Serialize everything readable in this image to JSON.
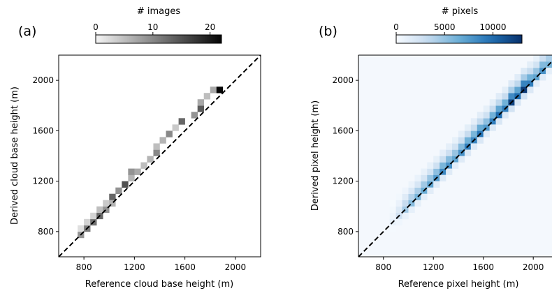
{
  "chart_data": [
    {
      "type": "heatmap",
      "panel_label": "(a)",
      "xlabel": "Reference cloud base height (m)",
      "ylabel": "Derived cloud base height (m)",
      "xlim": [
        600,
        2200
      ],
      "ylim": [
        600,
        2200
      ],
      "xticks": [
        800,
        1200,
        1600,
        2000
      ],
      "yticks": [
        800,
        1200,
        1600,
        2000
      ],
      "bin_size": 50,
      "reference_line": "y = x (dashed)",
      "colorbar": {
        "label": "# images",
        "range": [
          0,
          22
        ],
        "ticks": [
          0,
          10,
          20
        ],
        "colormap": "Greys"
      },
      "cells": [
        {
          "x": 775,
          "y": 775,
          "v": 9
        },
        {
          "x": 775,
          "y": 825,
          "v": 2
        },
        {
          "x": 825,
          "y": 825,
          "v": 11
        },
        {
          "x": 825,
          "y": 875,
          "v": 3
        },
        {
          "x": 875,
          "y": 875,
          "v": 12
        },
        {
          "x": 875,
          "y": 925,
          "v": 3
        },
        {
          "x": 925,
          "y": 925,
          "v": 13
        },
        {
          "x": 925,
          "y": 975,
          "v": 5
        },
        {
          "x": 975,
          "y": 975,
          "v": 9
        },
        {
          "x": 975,
          "y": 1025,
          "v": 4
        },
        {
          "x": 1025,
          "y": 1075,
          "v": 13
        },
        {
          "x": 1025,
          "y": 1025,
          "v": 6
        },
        {
          "x": 1075,
          "y": 1125,
          "v": 9
        },
        {
          "x": 1125,
          "y": 1175,
          "v": 15
        },
        {
          "x": 1175,
          "y": 1225,
          "v": 6
        },
        {
          "x": 1175,
          "y": 1275,
          "v": 9
        },
        {
          "x": 1225,
          "y": 1275,
          "v": 7
        },
        {
          "x": 1275,
          "y": 1325,
          "v": 5
        },
        {
          "x": 1325,
          "y": 1375,
          "v": 6
        },
        {
          "x": 1375,
          "y": 1425,
          "v": 10
        },
        {
          "x": 1375,
          "y": 1475,
          "v": 5
        },
        {
          "x": 1425,
          "y": 1525,
          "v": 6
        },
        {
          "x": 1475,
          "y": 1575,
          "v": 10
        },
        {
          "x": 1525,
          "y": 1625,
          "v": 4
        },
        {
          "x": 1575,
          "y": 1675,
          "v": 13
        },
        {
          "x": 1675,
          "y": 1725,
          "v": 9
        },
        {
          "x": 1725,
          "y": 1775,
          "v": 14
        },
        {
          "x": 1725,
          "y": 1825,
          "v": 7
        },
        {
          "x": 1775,
          "y": 1875,
          "v": 5
        },
        {
          "x": 1825,
          "y": 1925,
          "v": 7
        },
        {
          "x": 1875,
          "y": 1925,
          "v": 22
        }
      ]
    },
    {
      "type": "heatmap",
      "panel_label": "(b)",
      "xlabel": "Reference pixel height (m)",
      "ylabel": "Derived pixel height (m)",
      "xlim": [
        600,
        2150
      ],
      "ylim": [
        600,
        2200
      ],
      "xticks": [
        800,
        1200,
        1600,
        2000
      ],
      "yticks": [
        800,
        1200,
        1600,
        2000
      ],
      "bin_size": 50,
      "reference_line": "y = x (dashed)",
      "colorbar": {
        "label": "# pixels",
        "range": [
          0,
          13000
        ],
        "ticks": [
          0,
          5000,
          10000
        ],
        "colormap": "Blues"
      },
      "diagonal_band": [
        {
          "x": 875,
          "v": 900
        },
        {
          "x": 925,
          "v": 2500
        },
        {
          "x": 975,
          "v": 4500
        },
        {
          "x": 1025,
          "v": 5500
        },
        {
          "x": 1075,
          "v": 6000
        },
        {
          "x": 1125,
          "v": 6500
        },
        {
          "x": 1175,
          "v": 7000
        },
        {
          "x": 1225,
          "v": 7500
        },
        {
          "x": 1275,
          "v": 8500
        },
        {
          "x": 1325,
          "v": 8000
        },
        {
          "x": 1375,
          "v": 7000
        },
        {
          "x": 1425,
          "v": 8000
        },
        {
          "x": 1475,
          "v": 9000
        },
        {
          "x": 1525,
          "v": 8500
        },
        {
          "x": 1575,
          "v": 9500
        },
        {
          "x": 1625,
          "v": 7500
        },
        {
          "x": 1675,
          "v": 9000
        },
        {
          "x": 1725,
          "v": 10000
        },
        {
          "x": 1775,
          "v": 9000
        },
        {
          "x": 1825,
          "v": 12000
        },
        {
          "x": 1875,
          "v": 10000
        },
        {
          "x": 1925,
          "v": 12500
        },
        {
          "x": 1975,
          "v": 9000
        },
        {
          "x": 2025,
          "v": 7000
        },
        {
          "x": 2075,
          "v": 8000
        },
        {
          "x": 2125,
          "v": 6000
        }
      ]
    }
  ]
}
